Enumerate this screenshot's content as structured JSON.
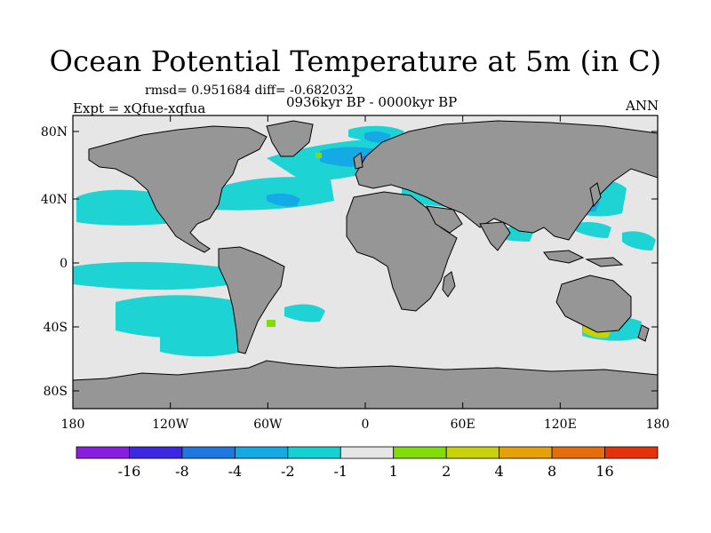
{
  "title": "Ocean Potential Temperature at 5m (in C)",
  "stats": "rmsd= 0.951684 diff= -0.682032",
  "experiment": "Expt = xQfue-xqfua",
  "period": "0936kyr BP - 0000kyr BP",
  "season": "ANN",
  "map": {
    "lon_ticks": [
      "180",
      "120W",
      "60W",
      "0",
      "60E",
      "120E",
      "180"
    ],
    "lat_ticks": [
      "80N",
      "40N",
      "0",
      "40S",
      "80S"
    ],
    "colors": {
      "ocean": "#e6e6e6",
      "land": "#969696",
      "outline": "#000000"
    }
  },
  "colorbar": {
    "labels": [
      "-16",
      "-8",
      "-4",
      "-2",
      "-1",
      "1",
      "2",
      "4",
      "8",
      "16"
    ],
    "colors": [
      "#8a1ee0",
      "#3c28e0",
      "#1e78e0",
      "#14aae6",
      "#14d2d2",
      "#e6e6e6",
      "#82dc0a",
      "#c8d20a",
      "#e6a00a",
      "#e66e0a",
      "#e6320a"
    ]
  }
}
